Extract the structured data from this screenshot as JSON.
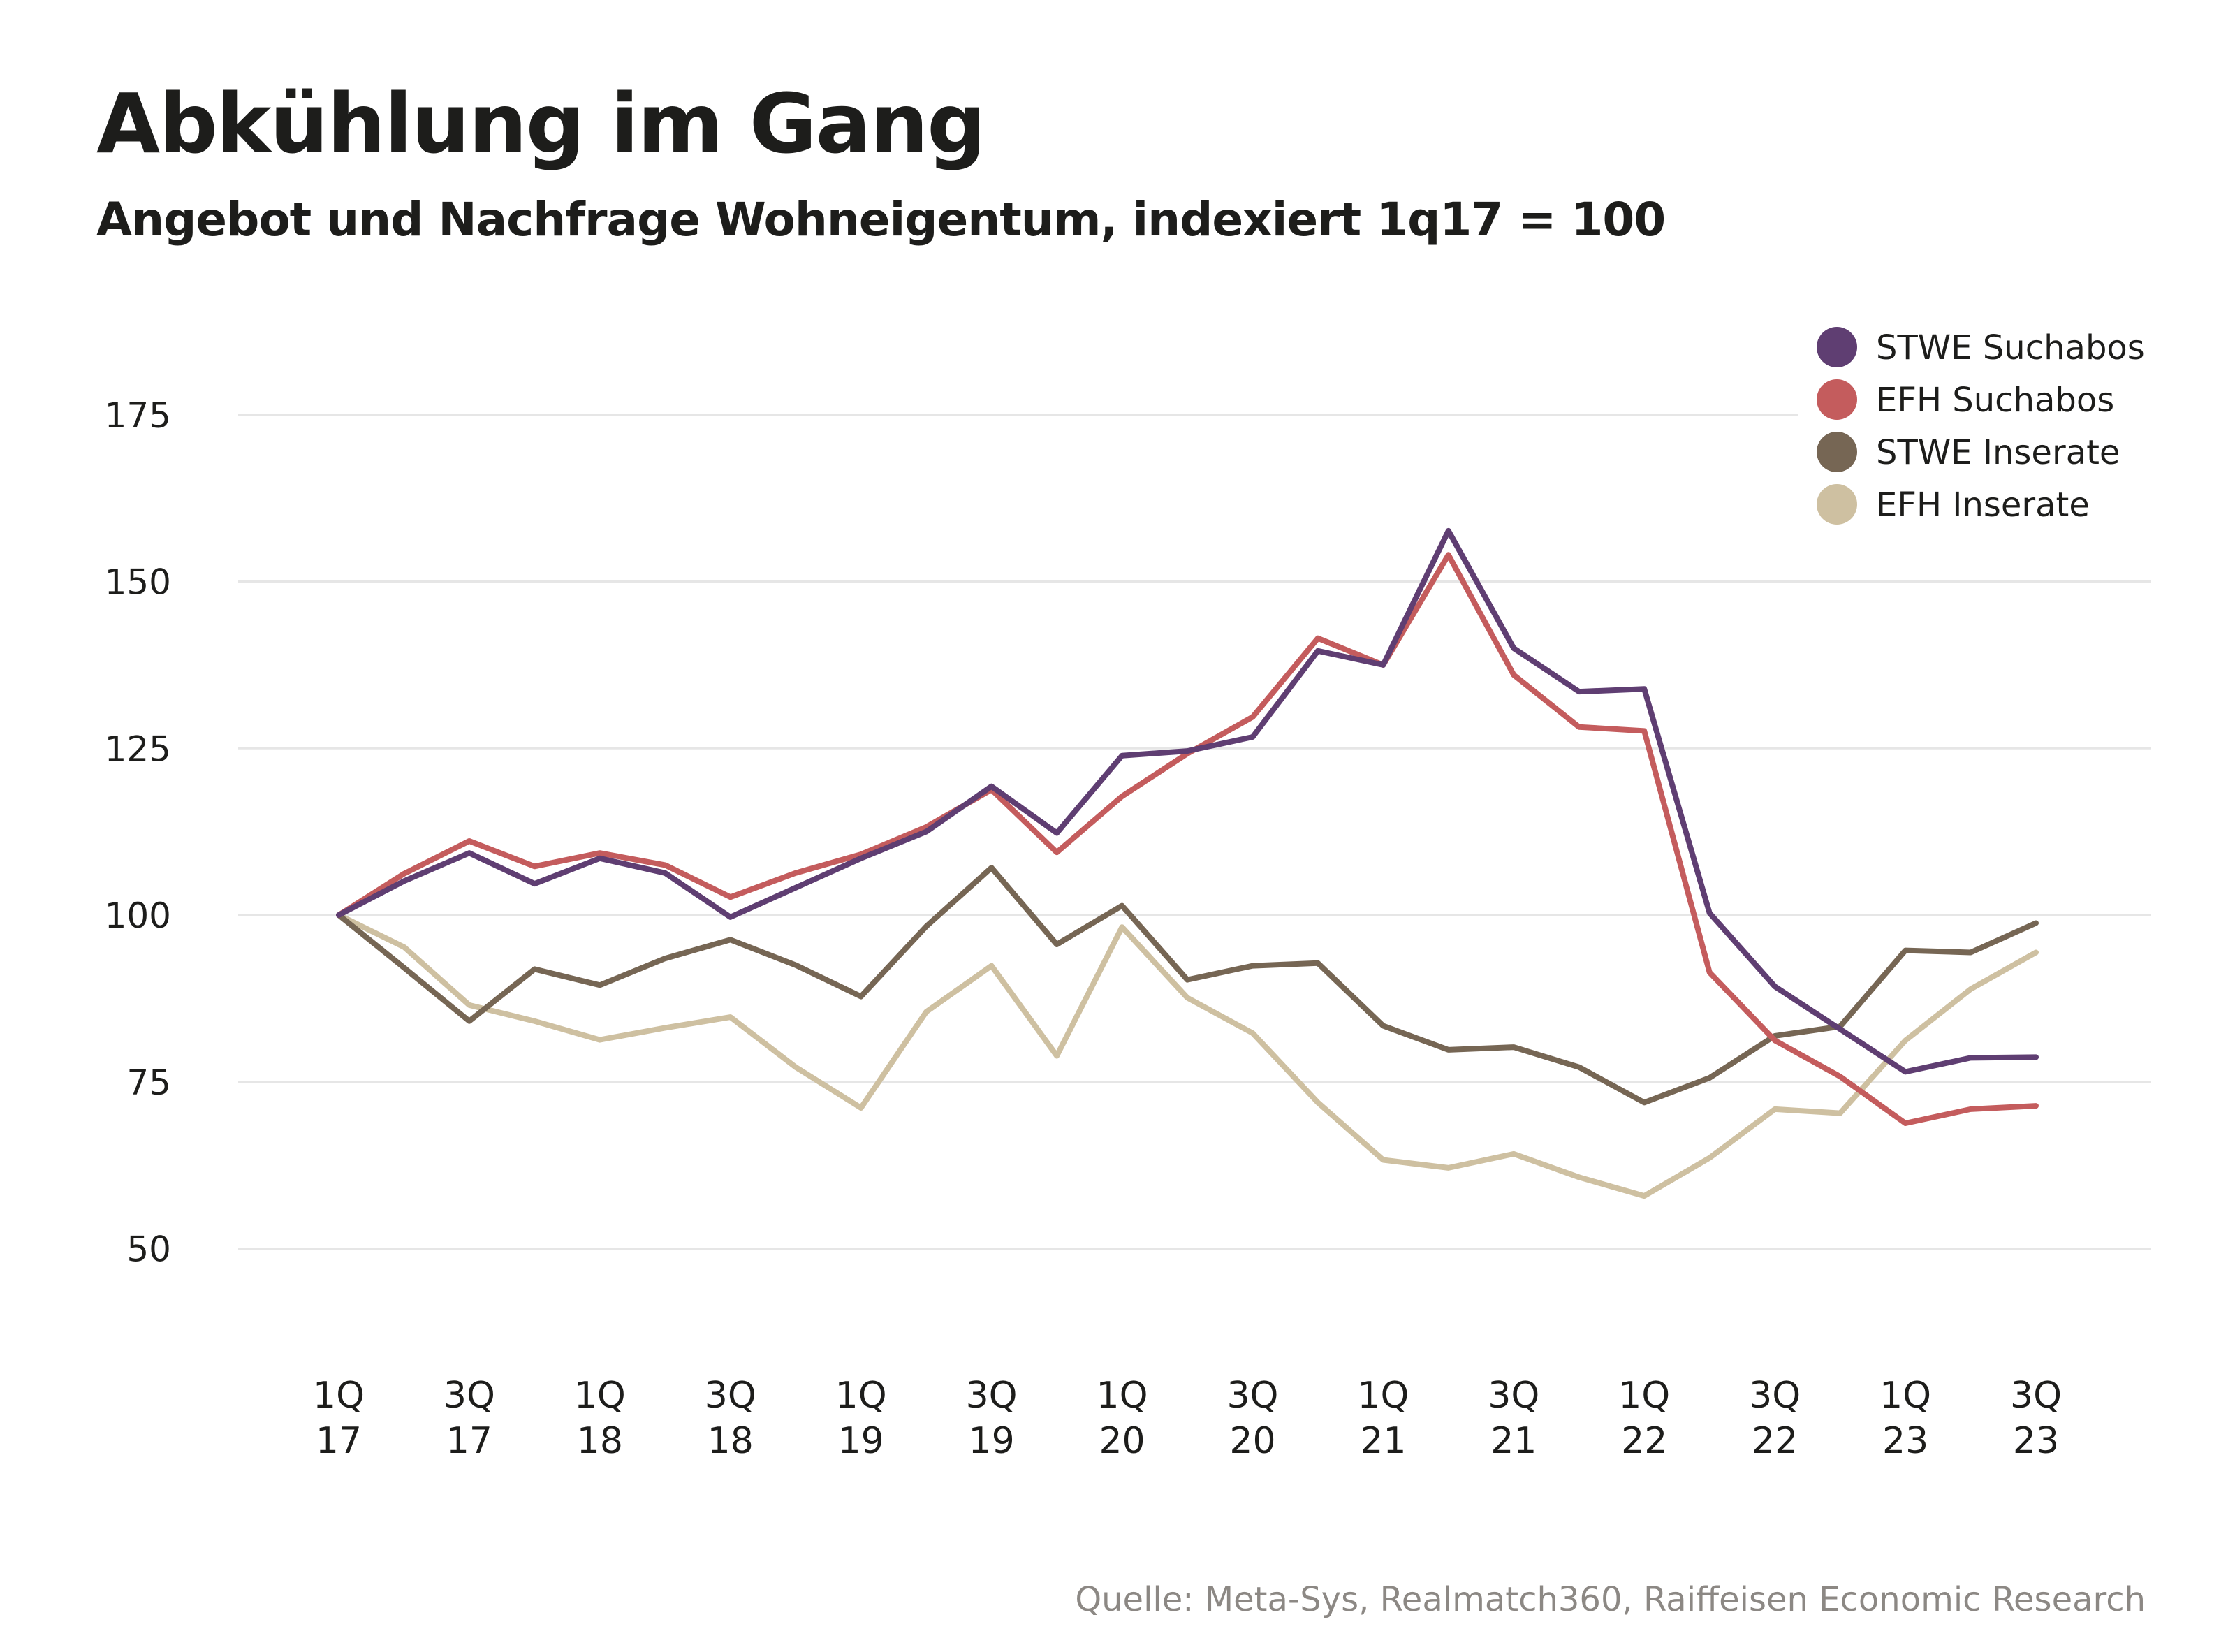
{
  "chart_data": {
    "type": "line",
    "title": "Abkühlung im Gang",
    "subtitle": "Angebot und Nachfrage Wohneigentum, indexiert 1q17 = 100",
    "xlabel": "",
    "ylabel": "",
    "ylim": [
      50,
      175
    ],
    "yticks": [
      "175",
      "150",
      "125",
      "100",
      "75",
      "50"
    ],
    "ytick_values": [
      175,
      150,
      125,
      100,
      75,
      50
    ],
    "grid": true,
    "legend_position": "top-right",
    "categories": [
      "1Q17",
      "2Q17",
      "3Q17",
      "4Q17",
      "1Q18",
      "2Q18",
      "3Q18",
      "4Q18",
      "1Q19",
      "2Q19",
      "3Q19",
      "4Q19",
      "1Q20",
      "2Q20",
      "3Q20",
      "4Q20",
      "1Q21",
      "2Q21",
      "3Q21",
      "4Q21",
      "1Q22",
      "2Q22",
      "3Q22",
      "4Q22",
      "1Q23",
      "2Q23",
      "3Q23"
    ],
    "xtick_labels": [
      {
        "index": 0,
        "q": "1Q",
        "y": "17"
      },
      {
        "index": 2,
        "q": "3Q",
        "y": "17"
      },
      {
        "index": 4,
        "q": "1Q",
        "y": "18"
      },
      {
        "index": 6,
        "q": "3Q",
        "y": "18"
      },
      {
        "index": 8,
        "q": "1Q",
        "y": "19"
      },
      {
        "index": 10,
        "q": "3Q",
        "y": "19"
      },
      {
        "index": 12,
        "q": "1Q",
        "y": "20"
      },
      {
        "index": 14,
        "q": "3Q",
        "y": "20"
      },
      {
        "index": 16,
        "q": "1Q",
        "y": "21"
      },
      {
        "index": 18,
        "q": "3Q",
        "y": "21"
      },
      {
        "index": 20,
        "q": "1Q",
        "y": "22"
      },
      {
        "index": 22,
        "q": "3Q",
        "y": "22"
      },
      {
        "index": 24,
        "q": "1Q",
        "y": "23"
      },
      {
        "index": 26,
        "q": "3Q",
        "y": "23"
      }
    ],
    "series": [
      {
        "name": "STWE Suchabos",
        "color": "#5f3e72",
        "values": [
          100,
          105.1,
          109.3,
          104.7,
          108.5,
          106.3,
          99.7,
          104.1,
          108.5,
          112.5,
          119.3,
          112.3,
          123.9,
          124.6,
          126.7,
          139.6,
          137.5,
          157.6,
          140.0,
          133.5,
          133.9,
          100.3,
          89.3,
          82.9,
          76.5,
          78.6,
          78.7
        ]
      },
      {
        "name": "EFH Suchabos",
        "color": "#c45c5d",
        "values": [
          100,
          106.2,
          111.1,
          107.3,
          109.3,
          107.5,
          102.7,
          106.3,
          109.1,
          113.2,
          118.8,
          109.4,
          117.8,
          124.2,
          129.7,
          141.5,
          137.5,
          154.0,
          136.0,
          128.2,
          127.6,
          91.4,
          81.2,
          75.8,
          68.8,
          70.9,
          71.4
        ]
      },
      {
        "name": "STWE Inserate",
        "color": "#766654",
        "values": [
          100,
          92.1,
          84.1,
          91.9,
          89.5,
          93.5,
          96.3,
          92.5,
          87.8,
          98.3,
          107.1,
          95.6,
          101.4,
          90.3,
          92.4,
          92.8,
          83.4,
          79.8,
          80.2,
          77.2,
          71.9,
          75.6,
          81.9,
          83.3,
          94.7,
          94.4,
          98.8
        ]
      },
      {
        "name": "EFH Inserate",
        "color": "#cec0a1",
        "values": [
          100,
          95.2,
          86.5,
          84.1,
          81.3,
          83.1,
          84.7,
          77.2,
          71.1,
          85.5,
          92.4,
          78.9,
          98.2,
          87.6,
          82.3,
          71.9,
          63.3,
          62.1,
          64.2,
          60.7,
          57.9,
          63.6,
          70.9,
          70.3,
          81.2,
          88.9,
          94.4
        ]
      }
    ],
    "source": "Quelle: Meta-Sys, Realmatch360, Raiffeisen Economic Research"
  },
  "colors": {
    "gridline": "#e6e6e6",
    "text": "#1d1d1b",
    "source_text": "#8c8884"
  }
}
